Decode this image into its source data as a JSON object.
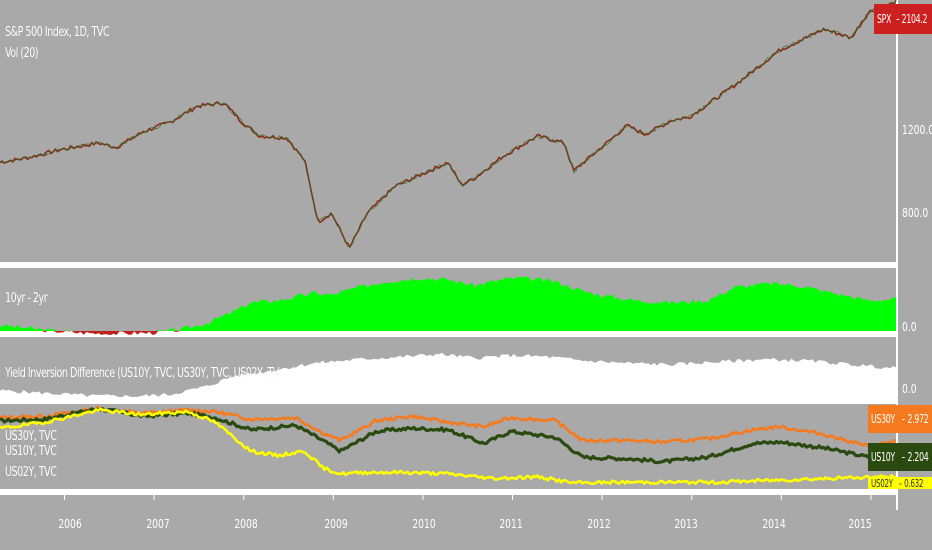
{
  "panes": {
    "main": {
      "title": "S&P 500 Index, 1D, TVC",
      "volume_label": "Vol (20)",
      "price_tag": {
        "symbol": "SPX",
        "value": "2104.2",
        "color": "#cc1f1f"
      },
      "axis_labels": [
        "1200.0",
        "800.0"
      ]
    },
    "spread": {
      "title": "10yr - 2yr",
      "axis_label": "0.0",
      "positive_color": "#00ff00",
      "negative_color": "#c0201c"
    },
    "inversion": {
      "title": "Yield Inversion Difference (US10Y, TVC, US30Y, TVC, US02Y, TV",
      "axis_label": "0.0",
      "fill_color": "#ffffff"
    },
    "yields": {
      "series_labels": [
        "US30Y, TVC",
        "US10Y, TVC",
        "US02Y, TVC"
      ],
      "tags": [
        {
          "symbol": "US30Y",
          "value": "2.972",
          "color": "#f57a1f"
        },
        {
          "symbol": "US10Y",
          "value": "2.204",
          "color": "#2b4a10"
        },
        {
          "symbol": "US02Y",
          "value": "0.632",
          "color": "#ffff00"
        }
      ]
    }
  },
  "x_axis": {
    "labels": [
      "2006",
      "2007",
      "2008",
      "2009",
      "2010",
      "2011",
      "2012",
      "2013",
      "2014",
      "2015"
    ]
  },
  "chart_data": [
    {
      "type": "line",
      "series": [
        {
          "name": "SPX",
          "color": "#7a2a1a",
          "x": [
            2005.3,
            2005.6,
            2006.0,
            2006.4,
            2006.6,
            2006.9,
            2007.2,
            2007.5,
            2007.8,
            2008.0,
            2008.2,
            2008.5,
            2008.7,
            2008.85,
            2009.0,
            2009.2,
            2009.4,
            2009.7,
            2010.0,
            2010.3,
            2010.45,
            2010.6,
            2010.9,
            2011.3,
            2011.6,
            2011.7,
            2012.0,
            2012.3,
            2012.5,
            2012.8,
            2013.0,
            2013.5,
            2014.0,
            2014.5,
            2014.8,
            2015.0,
            2015.3
          ],
          "y": [
            1190,
            1215,
            1265,
            1300,
            1275,
            1365,
            1420,
            1510,
            1530,
            1420,
            1340,
            1330,
            1200,
            850,
            900,
            700,
            900,
            1050,
            1120,
            1190,
            1060,
            1100,
            1220,
            1340,
            1300,
            1140,
            1270,
            1400,
            1350,
            1430,
            1450,
            1630,
            1830,
            1950,
            1900,
            2050,
            2104
          ]
        }
      ]
    },
    {
      "type": "area",
      "series": [
        {
          "name": "10yr - 2yr",
          "x": [
            2005.3,
            2005.6,
            2005.9,
            2006.2,
            2006.5,
            2006.8,
            2007.0,
            2007.3,
            2007.6,
            2007.9,
            2008.1,
            2008.4,
            2008.6,
            2008.8,
            2009.0,
            2009.3,
            2009.6,
            2010.0,
            2010.3,
            2010.6,
            2010.9,
            2011.1,
            2011.5,
            2011.8,
            2012.0,
            2012.4,
            2012.8,
            2013.2,
            2013.5,
            2013.9,
            2014.2,
            2014.6,
            2015.0,
            2015.3
          ],
          "y": [
            0.3,
            0.15,
            0.0,
            -0.1,
            -0.15,
            -0.12,
            -0.1,
            0.05,
            0.4,
            1.0,
            1.5,
            1.6,
            1.8,
            2.0,
            1.9,
            2.3,
            2.6,
            2.8,
            2.7,
            2.4,
            2.7,
            2.8,
            2.6,
            2.1,
            1.9,
            1.6,
            1.5,
            1.6,
            2.3,
            2.5,
            2.4,
            2.0,
            1.6,
            1.7
          ]
        }
      ]
    },
    {
      "type": "area",
      "series": [
        {
          "name": "Yield Inversion Difference",
          "x": [
            2005.3,
            2005.8,
            2006.3,
            2006.8,
            2007.2,
            2007.6,
            2007.9,
            2008.3,
            2008.8,
            2009.3,
            2009.8,
            2010.2,
            2010.6,
            2011.0,
            2011.4,
            2011.8,
            2012.3,
            2012.8,
            2013.3,
            2013.8,
            2014.3,
            2014.8,
            2015.3
          ],
          "y": [
            0.5,
            0.3,
            0.1,
            0.05,
            0.2,
            0.8,
            1.6,
            2.0,
            2.6,
            2.9,
            3.1,
            3.3,
            3.0,
            3.2,
            3.1,
            2.8,
            2.6,
            2.5,
            2.7,
            2.9,
            2.8,
            2.5,
            2.2
          ]
        }
      ]
    },
    {
      "type": "line",
      "series": [
        {
          "name": "US30Y",
          "color": "#f57a1f",
          "x": [
            2005.3,
            2005.8,
            2006.4,
            2006.9,
            2007.4,
            2007.7,
            2008.1,
            2008.6,
            2008.9,
            2009.1,
            2009.5,
            2009.9,
            2010.3,
            2010.7,
            2011.0,
            2011.5,
            2011.8,
            2012.3,
            2012.7,
            2013.2,
            2013.7,
            2014.0,
            2014.5,
            2015.0,
            2015.3
          ],
          "y": [
            4.5,
            4.6,
            5.1,
            4.8,
            5.0,
            4.9,
            4.4,
            4.5,
            3.5,
            3.0,
            4.3,
            4.6,
            4.2,
            3.9,
            4.5,
            4.3,
            3.0,
            3.0,
            2.9,
            3.1,
            3.7,
            3.9,
            3.4,
            2.6,
            2.97
          ]
        },
        {
          "name": "US10Y",
          "color": "#2b4a10",
          "x": [
            2005.3,
            2005.8,
            2006.4,
            2006.9,
            2007.4,
            2007.7,
            2008.1,
            2008.6,
            2008.9,
            2009.1,
            2009.5,
            2009.9,
            2010.3,
            2010.7,
            2011.0,
            2011.5,
            2011.8,
            2012.3,
            2012.7,
            2013.2,
            2013.7,
            2014.0,
            2014.5,
            2015.0,
            2015.3
          ],
          "y": [
            4.3,
            4.4,
            5.1,
            4.6,
            4.8,
            4.5,
            3.7,
            4.0,
            3.0,
            2.3,
            3.6,
            3.8,
            3.7,
            2.8,
            3.6,
            3.2,
            1.9,
            1.8,
            1.6,
            1.9,
            2.8,
            2.9,
            2.5,
            1.9,
            2.2
          ]
        },
        {
          "name": "US02Y",
          "color": "#ffff00",
          "x": [
            2005.3,
            2005.8,
            2006.4,
            2006.9,
            2007.4,
            2007.7,
            2008.1,
            2008.4,
            2008.7,
            2008.9,
            2009.1,
            2009.4,
            2009.8,
            2010.3,
            2010.8,
            2011.3,
            2011.7,
            2012.3,
            2013.3,
            2014.3,
            2014.8,
            2015.3
          ],
          "y": [
            3.8,
            4.2,
            5.0,
            4.7,
            4.9,
            4.2,
            2.3,
            2.0,
            2.3,
            1.2,
            0.8,
            0.9,
            0.9,
            0.8,
            0.5,
            0.6,
            0.2,
            0.25,
            0.25,
            0.45,
            0.55,
            0.63
          ]
        }
      ]
    }
  ]
}
